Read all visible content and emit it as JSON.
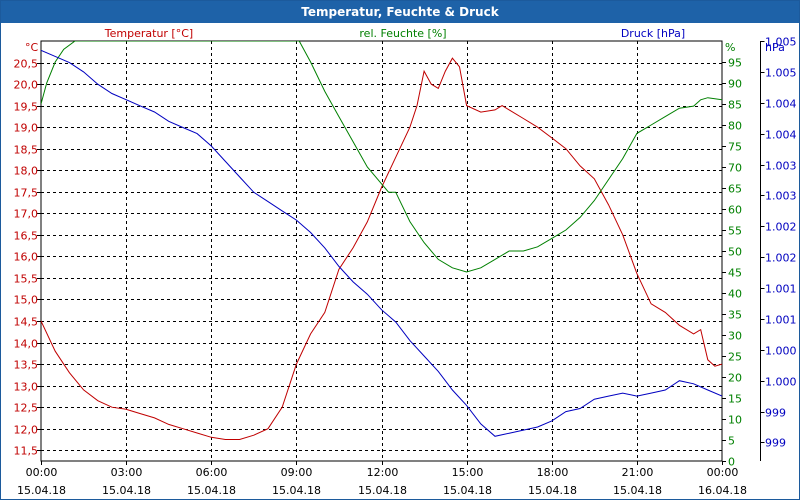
{
  "window": {
    "title": "Temperatur, Feuchte & Druck"
  },
  "chart_data": {
    "type": "line",
    "title": "Temperatur, Feuchte & Druck",
    "grid": true,
    "x_ticks": [
      {
        "time": "00:00",
        "date": "15.04.18"
      },
      {
        "time": "03:00",
        "date": "15.04.18"
      },
      {
        "time": "06:00",
        "date": "15.04.18"
      },
      {
        "time": "09:00",
        "date": "15.04.18"
      },
      {
        "time": "12:00",
        "date": "15.04.18"
      },
      {
        "time": "15:00",
        "date": "15.04.18"
      },
      {
        "time": "18:00",
        "date": "15.04.18"
      },
      {
        "time": "21:00",
        "date": "15.04.18"
      },
      {
        "time": "00:00",
        "date": "16.04.18"
      }
    ],
    "xlim": [
      0,
      24
    ],
    "axes": {
      "temperature": {
        "unit": "°C",
        "ylim": [
          11.25,
          21.0
        ],
        "ticks": [
          "11,5",
          "12,0",
          "12,5",
          "13,0",
          "13,5",
          "14,0",
          "14,5",
          "15,0",
          "15,5",
          "16,0",
          "16,5",
          "17,0",
          "17,5",
          "18,0",
          "18,5",
          "19,0",
          "19,5",
          "20,0",
          "20,5"
        ],
        "tick_values": [
          11.5,
          12.0,
          12.5,
          13.0,
          13.5,
          14.0,
          14.5,
          15.0,
          15.5,
          16.0,
          16.5,
          17.0,
          17.5,
          18.0,
          18.5,
          19.0,
          19.5,
          20.0,
          20.5
        ]
      },
      "humidity": {
        "unit": "%",
        "ylim": [
          0,
          100
        ],
        "ticks": [
          "0",
          "5",
          "10",
          "15",
          "20",
          "25",
          "30",
          "35",
          "40",
          "45",
          "50",
          "55",
          "60",
          "65",
          "70",
          "75",
          "80",
          "85",
          "90",
          "95"
        ],
        "tick_values": [
          0,
          5,
          10,
          15,
          20,
          25,
          30,
          35,
          40,
          45,
          50,
          55,
          60,
          65,
          70,
          75,
          80,
          85,
          90,
          95
        ]
      },
      "pressure": {
        "unit": "hPa",
        "ylim": [
          998.5,
          1005.3
        ],
        "ticks": [
          "999",
          "999",
          "1.000",
          "1.000",
          "1.001",
          "1.001",
          "1.002",
          "1.002",
          "1.003",
          "1.003",
          "1.004",
          "1.004",
          "1.005",
          "1.005"
        ],
        "tick_values": [
          998.8,
          999.3,
          999.8,
          1000.3,
          1000.8,
          1001.3,
          1001.8,
          1002.3,
          1002.8,
          1003.3,
          1003.8,
          1004.3,
          1004.8,
          1005.3
        ]
      }
    },
    "series": [
      {
        "name": "Temperatur [°C]",
        "axis": "temperature",
        "color": "#c00000",
        "points": [
          [
            0,
            14.5
          ],
          [
            0.5,
            13.8
          ],
          [
            1,
            13.3
          ],
          [
            1.5,
            12.9
          ],
          [
            2,
            12.65
          ],
          [
            2.5,
            12.5
          ],
          [
            3,
            12.45
          ],
          [
            3.5,
            12.35
          ],
          [
            4,
            12.25
          ],
          [
            4.5,
            12.1
          ],
          [
            5,
            12.0
          ],
          [
            5.5,
            11.9
          ],
          [
            6,
            11.8
          ],
          [
            6.5,
            11.75
          ],
          [
            7,
            11.75
          ],
          [
            7.5,
            11.85
          ],
          [
            8,
            12.0
          ],
          [
            8.5,
            12.5
          ],
          [
            9,
            13.5
          ],
          [
            9.5,
            14.2
          ],
          [
            10,
            14.7
          ],
          [
            10.5,
            15.7
          ],
          [
            11,
            16.2
          ],
          [
            11.5,
            16.8
          ],
          [
            12,
            17.6
          ],
          [
            12.5,
            18.3
          ],
          [
            13,
            19.0
          ],
          [
            13.25,
            19.5
          ],
          [
            13.5,
            20.3
          ],
          [
            13.75,
            20.0
          ],
          [
            14,
            19.9
          ],
          [
            14.25,
            20.3
          ],
          [
            14.5,
            20.6
          ],
          [
            14.75,
            20.4
          ],
          [
            15,
            19.5
          ],
          [
            15.5,
            19.35
          ],
          [
            16,
            19.4
          ],
          [
            16.25,
            19.5
          ],
          [
            16.5,
            19.4
          ],
          [
            17,
            19.2
          ],
          [
            17.5,
            19.0
          ],
          [
            18,
            18.75
          ],
          [
            18.5,
            18.5
          ],
          [
            19,
            18.1
          ],
          [
            19.5,
            17.8
          ],
          [
            20,
            17.2
          ],
          [
            20.5,
            16.5
          ],
          [
            21,
            15.6
          ],
          [
            21.5,
            14.9
          ],
          [
            22,
            14.7
          ],
          [
            22.5,
            14.4
          ],
          [
            23,
            14.2
          ],
          [
            23.25,
            14.3
          ],
          [
            23.5,
            13.6
          ],
          [
            23.75,
            13.45
          ],
          [
            24,
            13.5
          ]
        ]
      },
      {
        "name": "rel. Feuchte [%]",
        "axis": "humidity",
        "color": "#008000",
        "points": [
          [
            0,
            85
          ],
          [
            0.2,
            90
          ],
          [
            0.5,
            95
          ],
          [
            0.8,
            98
          ],
          [
            1.2,
            100
          ],
          [
            9.1,
            100
          ],
          [
            9.5,
            95
          ],
          [
            10,
            88
          ],
          [
            10.5,
            82
          ],
          [
            11,
            76
          ],
          [
            11.5,
            70
          ],
          [
            12,
            66
          ],
          [
            12.25,
            64
          ],
          [
            12.5,
            64
          ],
          [
            13,
            57
          ],
          [
            13.5,
            52
          ],
          [
            14,
            48
          ],
          [
            14.5,
            46
          ],
          [
            15,
            45
          ],
          [
            15.5,
            46
          ],
          [
            16,
            48
          ],
          [
            16.5,
            50
          ],
          [
            17,
            50
          ],
          [
            17.5,
            51
          ],
          [
            18,
            53
          ],
          [
            18.5,
            55
          ],
          [
            19,
            58
          ],
          [
            19.5,
            62
          ],
          [
            20,
            67
          ],
          [
            20.5,
            72
          ],
          [
            21,
            78
          ],
          [
            21.5,
            80
          ],
          [
            22,
            82
          ],
          [
            22.5,
            84
          ],
          [
            23,
            84.5
          ],
          [
            23.25,
            86
          ],
          [
            23.5,
            86.5
          ],
          [
            24,
            86
          ]
        ]
      },
      {
        "name": "Druck [hPa]",
        "axis": "pressure",
        "color": "#0000c0",
        "points": [
          [
            0,
            1005.15
          ],
          [
            0.5,
            1005.05
          ],
          [
            1,
            1004.95
          ],
          [
            1.5,
            1004.8
          ],
          [
            2,
            1004.6
          ],
          [
            2.5,
            1004.45
          ],
          [
            3,
            1004.35
          ],
          [
            3.5,
            1004.25
          ],
          [
            4,
            1004.15
          ],
          [
            4.5,
            1004.0
          ],
          [
            5,
            1003.9
          ],
          [
            5.5,
            1003.8
          ],
          [
            6,
            1003.6
          ],
          [
            6.5,
            1003.35
          ],
          [
            7,
            1003.1
          ],
          [
            7.5,
            1002.85
          ],
          [
            8,
            1002.7
          ],
          [
            8.5,
            1002.55
          ],
          [
            9,
            1002.4
          ],
          [
            9.5,
            1002.2
          ],
          [
            10,
            1001.95
          ],
          [
            10.5,
            1001.65
          ],
          [
            11,
            1001.4
          ],
          [
            11.5,
            1001.2
          ],
          [
            12,
            1000.95
          ],
          [
            12.5,
            1000.75
          ],
          [
            13,
            1000.45
          ],
          [
            13.5,
            1000.2
          ],
          [
            14,
            999.95
          ],
          [
            14.5,
            999.65
          ],
          [
            15,
            999.4
          ],
          [
            15.5,
            999.1
          ],
          [
            16,
            998.9
          ],
          [
            16.5,
            998.95
          ],
          [
            17,
            999.0
          ],
          [
            17.5,
            999.05
          ],
          [
            18,
            999.15
          ],
          [
            18.5,
            999.3
          ],
          [
            19,
            999.35
          ],
          [
            19.5,
            999.5
          ],
          [
            20,
            999.55
          ],
          [
            20.5,
            999.6
          ],
          [
            21,
            999.55
          ],
          [
            21.5,
            999.6
          ],
          [
            22,
            999.65
          ],
          [
            22.5,
            999.8
          ],
          [
            23,
            999.75
          ],
          [
            23.5,
            999.65
          ],
          [
            24,
            999.55
          ]
        ]
      }
    ]
  }
}
